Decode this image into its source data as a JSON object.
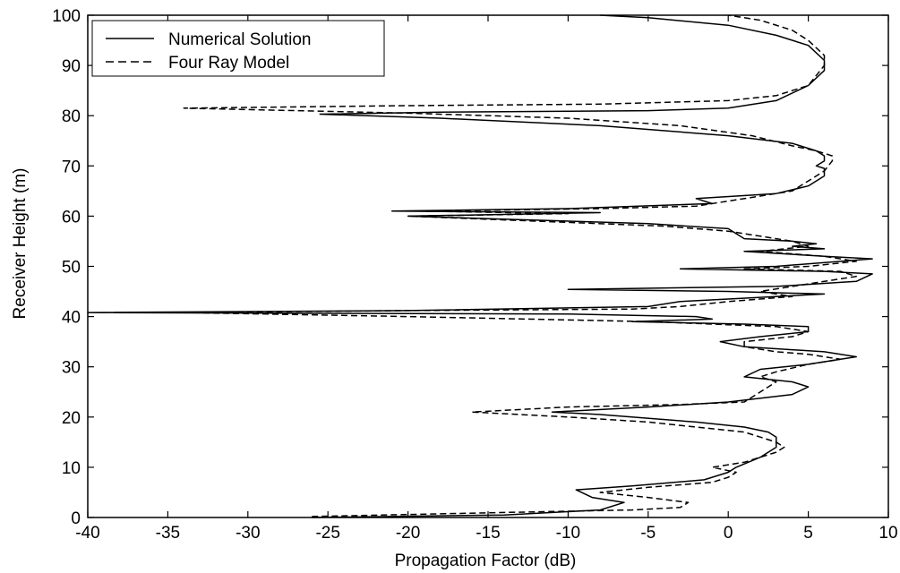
{
  "chart_data": {
    "type": "line",
    "title": "",
    "xlabel": "Propagation Factor (dB)",
    "ylabel": "Receiver Height (m)",
    "xlim": [
      -40,
      10
    ],
    "ylim": [
      0,
      100
    ],
    "xticks": [
      -40,
      -35,
      -30,
      -25,
      -20,
      -15,
      -10,
      -5,
      0,
      5,
      10
    ],
    "yticks": [
      0,
      10,
      20,
      30,
      40,
      50,
      60,
      70,
      80,
      90,
      100
    ],
    "grid": false,
    "legend_position": "top-left",
    "series": [
      {
        "name": "Numerical Solution",
        "style": "solid",
        "color": "#000000",
        "points": [
          [
            -26,
            0
          ],
          [
            -14,
            0.5
          ],
          [
            -8,
            1.5
          ],
          [
            -6.5,
            3
          ],
          [
            -8.5,
            4
          ],
          [
            -9.5,
            5.5
          ],
          [
            -6,
            6.3
          ],
          [
            -1.5,
            7.5
          ],
          [
            0,
            9
          ],
          [
            0.5,
            10
          ],
          [
            2,
            12
          ],
          [
            3,
            14
          ],
          [
            3,
            16
          ],
          [
            2.5,
            17
          ],
          [
            1,
            18
          ],
          [
            -2,
            19
          ],
          [
            -8,
            20.5
          ],
          [
            -11,
            21
          ],
          [
            -5,
            22
          ],
          [
            0,
            23
          ],
          [
            4,
            24.5
          ],
          [
            5,
            26
          ],
          [
            4,
            27
          ],
          [
            1,
            28
          ],
          [
            2,
            29.5
          ],
          [
            5,
            30.5
          ],
          [
            8,
            32
          ],
          [
            6,
            33
          ],
          [
            1,
            34
          ],
          [
            -0.5,
            35
          ],
          [
            2,
            36
          ],
          [
            5,
            37
          ],
          [
            5,
            38
          ],
          [
            1,
            38.5
          ],
          [
            -6,
            39
          ],
          [
            -1,
            39.5
          ],
          [
            -2,
            40
          ],
          [
            -10,
            40.5
          ],
          [
            -40,
            40.8
          ],
          [
            -20,
            41.2
          ],
          [
            -5,
            42
          ],
          [
            -3,
            43
          ],
          [
            0,
            43.5
          ],
          [
            6,
            44.5
          ],
          [
            0,
            45
          ],
          [
            -10,
            45.4
          ],
          [
            3,
            46
          ],
          [
            8,
            47
          ],
          [
            9,
            48.5
          ],
          [
            6,
            49
          ],
          [
            -3,
            49.5
          ],
          [
            3,
            50
          ],
          [
            9,
            51.5
          ],
          [
            6,
            52
          ],
          [
            1,
            53
          ],
          [
            6,
            53.5
          ],
          [
            4,
            54
          ],
          [
            5.5,
            54.5
          ],
          [
            4,
            55
          ],
          [
            1,
            55.5
          ],
          [
            0.5,
            56.5
          ],
          [
            0,
            57.5
          ],
          [
            -5,
            58.5
          ],
          [
            -15,
            59.5
          ],
          [
            -20,
            60
          ],
          [
            -8,
            60.7
          ],
          [
            -21,
            61
          ],
          [
            -10,
            61.5
          ],
          [
            -1,
            62.5
          ],
          [
            -2,
            63.5
          ],
          [
            3,
            64.5
          ],
          [
            5,
            66
          ],
          [
            6,
            68
          ],
          [
            6,
            69.5
          ],
          [
            5.5,
            70
          ],
          [
            6,
            71
          ],
          [
            6,
            72
          ],
          [
            5.5,
            73
          ],
          [
            4,
            74.5
          ],
          [
            0,
            76
          ],
          [
            -8,
            78
          ],
          [
            -18,
            79.5
          ],
          [
            -25.5,
            80.3
          ],
          [
            -18,
            80.7
          ],
          [
            -5,
            81
          ],
          [
            0,
            81.5
          ],
          [
            3,
            83
          ],
          [
            5,
            86
          ],
          [
            6,
            89
          ],
          [
            6,
            91
          ],
          [
            5,
            94
          ],
          [
            3,
            96
          ],
          [
            0,
            98
          ],
          [
            -5,
            99.5
          ],
          [
            -8,
            100
          ]
        ]
      },
      {
        "name": "Four Ray Model",
        "style": "dashed",
        "color": "#000000",
        "points": [
          [
            -26,
            0.2
          ],
          [
            -14,
            1
          ],
          [
            -6,
            1.5
          ],
          [
            -3,
            2
          ],
          [
            -2.5,
            3
          ],
          [
            -5,
            4
          ],
          [
            -8,
            5
          ],
          [
            -5,
            6
          ],
          [
            -1,
            7
          ],
          [
            0,
            8
          ],
          [
            0.5,
            9
          ],
          [
            -1,
            10
          ],
          [
            1,
            11
          ],
          [
            2,
            12
          ],
          [
            3,
            13
          ],
          [
            3.5,
            14
          ],
          [
            3,
            15
          ],
          [
            2,
            16
          ],
          [
            1,
            17
          ],
          [
            -2,
            18
          ],
          [
            -5,
            19
          ],
          [
            -10,
            20
          ],
          [
            -16,
            21
          ],
          [
            -10,
            22
          ],
          [
            -3,
            22.5
          ],
          [
            1,
            23
          ],
          [
            2,
            25
          ],
          [
            3,
            27
          ],
          [
            2,
            28
          ],
          [
            3,
            29
          ],
          [
            5,
            30.5
          ],
          [
            7,
            31.5
          ],
          [
            5,
            32.5
          ],
          [
            3,
            33
          ],
          [
            1,
            34
          ],
          [
            1,
            35
          ],
          [
            4,
            36
          ],
          [
            5,
            37
          ],
          [
            3,
            38
          ],
          [
            -1,
            38.5
          ],
          [
            -5,
            39
          ],
          [
            -20,
            40
          ],
          [
            -34,
            40.8
          ],
          [
            -20,
            41.2
          ],
          [
            -6,
            41.5
          ],
          [
            -3,
            42
          ],
          [
            0,
            43
          ],
          [
            4,
            44
          ],
          [
            2,
            45
          ],
          [
            4,
            46
          ],
          [
            6,
            47
          ],
          [
            8,
            48
          ],
          [
            7,
            49
          ],
          [
            1,
            49.5
          ],
          [
            5,
            50
          ],
          [
            8,
            51
          ],
          [
            6,
            52
          ],
          [
            2,
            53
          ],
          [
            5,
            54
          ],
          [
            4,
            55
          ],
          [
            2,
            56
          ],
          [
            0,
            57
          ],
          [
            -4,
            58
          ],
          [
            -12,
            59
          ],
          [
            -20,
            60
          ],
          [
            -10,
            60.5
          ],
          [
            -19,
            61
          ],
          [
            -8,
            61.5
          ],
          [
            -2,
            62
          ],
          [
            0,
            63
          ],
          [
            2,
            64
          ],
          [
            4,
            65
          ],
          [
            5,
            67
          ],
          [
            6,
            69
          ],
          [
            6.5,
            71
          ],
          [
            6.5,
            72
          ],
          [
            5.5,
            73
          ],
          [
            4,
            74
          ],
          [
            1.5,
            76
          ],
          [
            -3,
            78
          ],
          [
            -10,
            79.5
          ],
          [
            -20,
            80.5
          ],
          [
            -34,
            81.5
          ],
          [
            -20,
            82
          ],
          [
            -8,
            82.3
          ],
          [
            0,
            83
          ],
          [
            3,
            84
          ],
          [
            5,
            86
          ],
          [
            5.5,
            88
          ],
          [
            6,
            90
          ],
          [
            6,
            92
          ],
          [
            5,
            95
          ],
          [
            4,
            97
          ],
          [
            2,
            99
          ],
          [
            0,
            100
          ]
        ]
      }
    ]
  }
}
